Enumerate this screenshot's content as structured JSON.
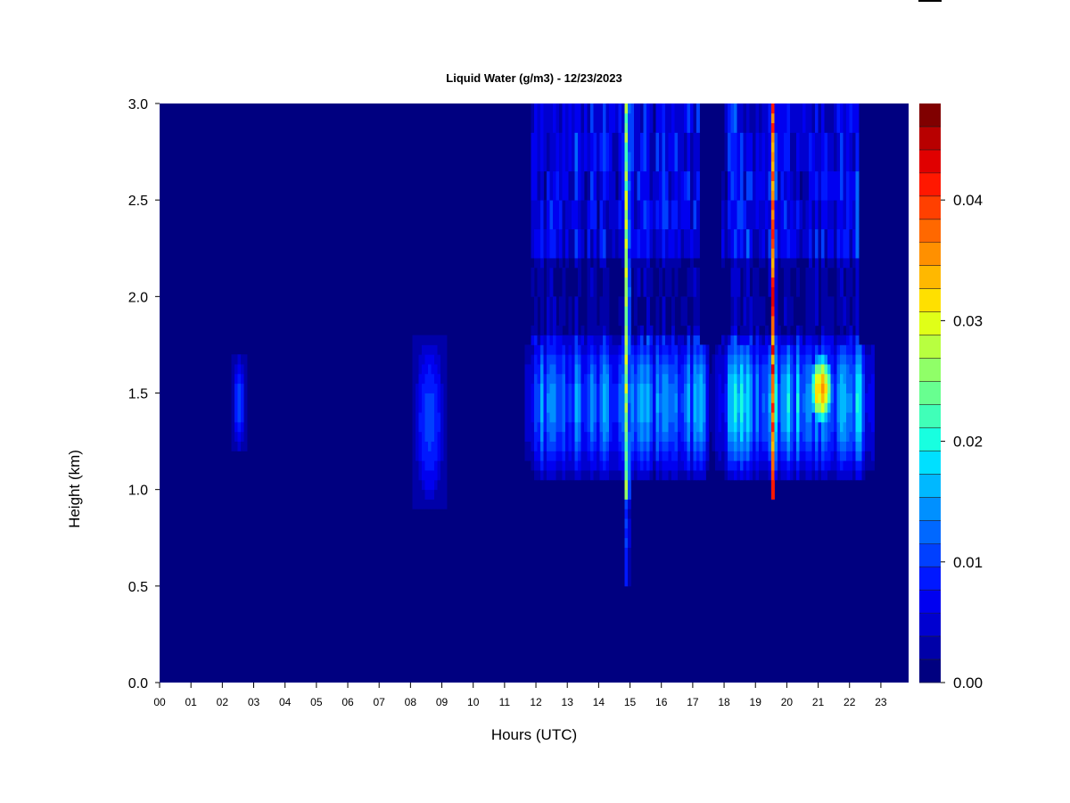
{
  "chart_data": {
    "type": "heatmap",
    "title": "Liquid Water (g/m3) - 12/23/2023",
    "xlabel": "Hours (UTC)",
    "ylabel": "Height (km)",
    "x_tick_labels": [
      "00",
      "01",
      "02",
      "03",
      "04",
      "05",
      "06",
      "07",
      "08",
      "09",
      "10",
      "11",
      "12",
      "13",
      "14",
      "15",
      "16",
      "17",
      "18",
      "19",
      "20",
      "21",
      "22",
      "23"
    ],
    "x_ticks": [
      0,
      1,
      2,
      3,
      4,
      5,
      6,
      7,
      8,
      9,
      10,
      11,
      12,
      13,
      14,
      15,
      16,
      17,
      18,
      19,
      20,
      21,
      22,
      23
    ],
    "xlim": [
      0,
      24
    ],
    "y_tick_labels": [
      "0.0",
      "0.5",
      "1.0",
      "1.5",
      "2.0",
      "2.5",
      "3.0"
    ],
    "y_ticks": [
      0.0,
      0.5,
      1.0,
      1.5,
      2.0,
      2.5,
      3.0
    ],
    "ylim": [
      0.0,
      3.0
    ],
    "colorbar": {
      "range": [
        0.0,
        0.048
      ],
      "levels": 24,
      "tick_labels": [
        "0.00",
        "0.01",
        "0.02",
        "0.03",
        "0.04"
      ],
      "ticks": [
        0.0,
        0.01,
        0.02,
        0.03,
        0.04
      ]
    },
    "colors": [
      "#000080",
      "#0000a8",
      "#0000d0",
      "#0000f0",
      "#0018ff",
      "#0040ff",
      "#0068ff",
      "#0090ff",
      "#00b8ff",
      "#00e0ff",
      "#18ffe0",
      "#40ffb8",
      "#68ff90",
      "#90ff68",
      "#b8ff40",
      "#e0ff18",
      "#ffe000",
      "#ffb800",
      "#ff9000",
      "#ff6800",
      "#ff4000",
      "#ff1800",
      "#e00000",
      "#b80000",
      "#800000"
    ],
    "features": [
      {
        "kind": "blob",
        "x0": 2.35,
        "x1": 2.75,
        "h0": 1.2,
        "h1": 1.72,
        "peak": 0.008
      },
      {
        "kind": "blob",
        "x0": 8.15,
        "x1": 9.15,
        "h0": 0.92,
        "h1": 1.8,
        "peak": 0.008
      },
      {
        "kind": "band",
        "x0": 11.7,
        "x1": 17.8,
        "h0": 0.92,
        "h1": 1.75,
        "peak": 0.014
      },
      {
        "kind": "band",
        "x0": 17.8,
        "x1": 22.9,
        "h0": 0.92,
        "h1": 1.75,
        "peak": 0.017
      },
      {
        "kind": "upper",
        "x0": 11.95,
        "x1": 17.3,
        "h0": 1.75,
        "h1": 3.0,
        "peak": 0.009
      },
      {
        "kind": "upper",
        "x0": 18.0,
        "x1": 22.4,
        "h0": 1.75,
        "h1": 3.0,
        "peak": 0.01
      },
      {
        "kind": "line",
        "x": 14.98,
        "h0": 0.48,
        "h1": 3.0,
        "peak": 0.044
      },
      {
        "kind": "line",
        "x": 19.65,
        "h0": 0.95,
        "h1": 3.0,
        "peak": 0.045
      },
      {
        "kind": "spot",
        "x": 21.2,
        "h": 1.52,
        "peak": 0.038
      }
    ]
  }
}
